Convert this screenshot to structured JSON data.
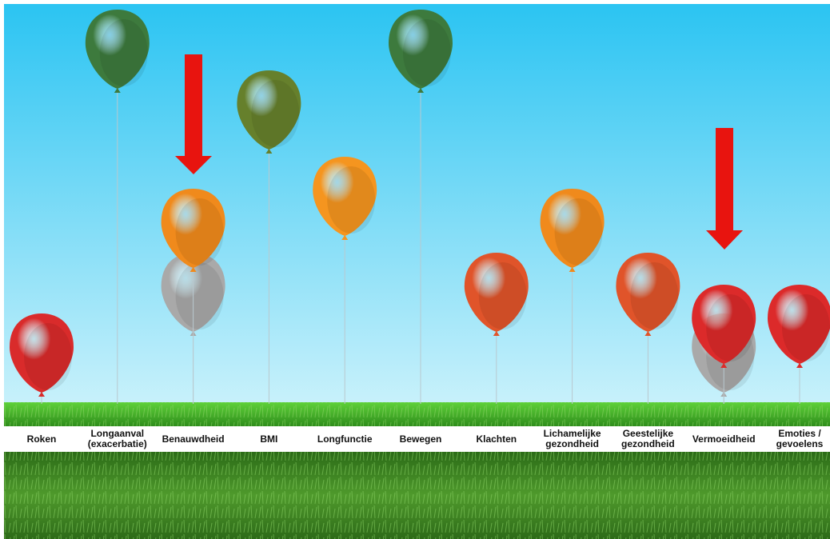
{
  "chart_data": {
    "type": "balloon",
    "categories": [
      "Roken",
      "Longaanval (exacerbatie)",
      "Benauwdheid",
      "BMI",
      "Longfunctie",
      "Bewegen",
      "Klachten",
      "Lichamelijke gezondheid",
      "Geestelijke gezondheid",
      "Vermoeidheid",
      "Emoties / gevoelens"
    ],
    "series": [
      {
        "color": "#a9a9a9",
        "values": [
          null,
          null,
          20,
          null,
          null,
          null,
          null,
          null,
          null,
          1,
          null
        ]
      },
      {
        "colors": [
          "#d92b2b",
          "#3d7a3d",
          "#f08a1c",
          "#66802c",
          "#f5951f",
          "#3d7a3d",
          "#e0542a",
          "#f08a1c",
          "#e0542a",
          "#dc2a2a",
          "#dc2a2a"
        ],
        "values": [
          1,
          96,
          40,
          77,
          50,
          96,
          20,
          40,
          20,
          10,
          10
        ]
      }
    ]
  }
}
